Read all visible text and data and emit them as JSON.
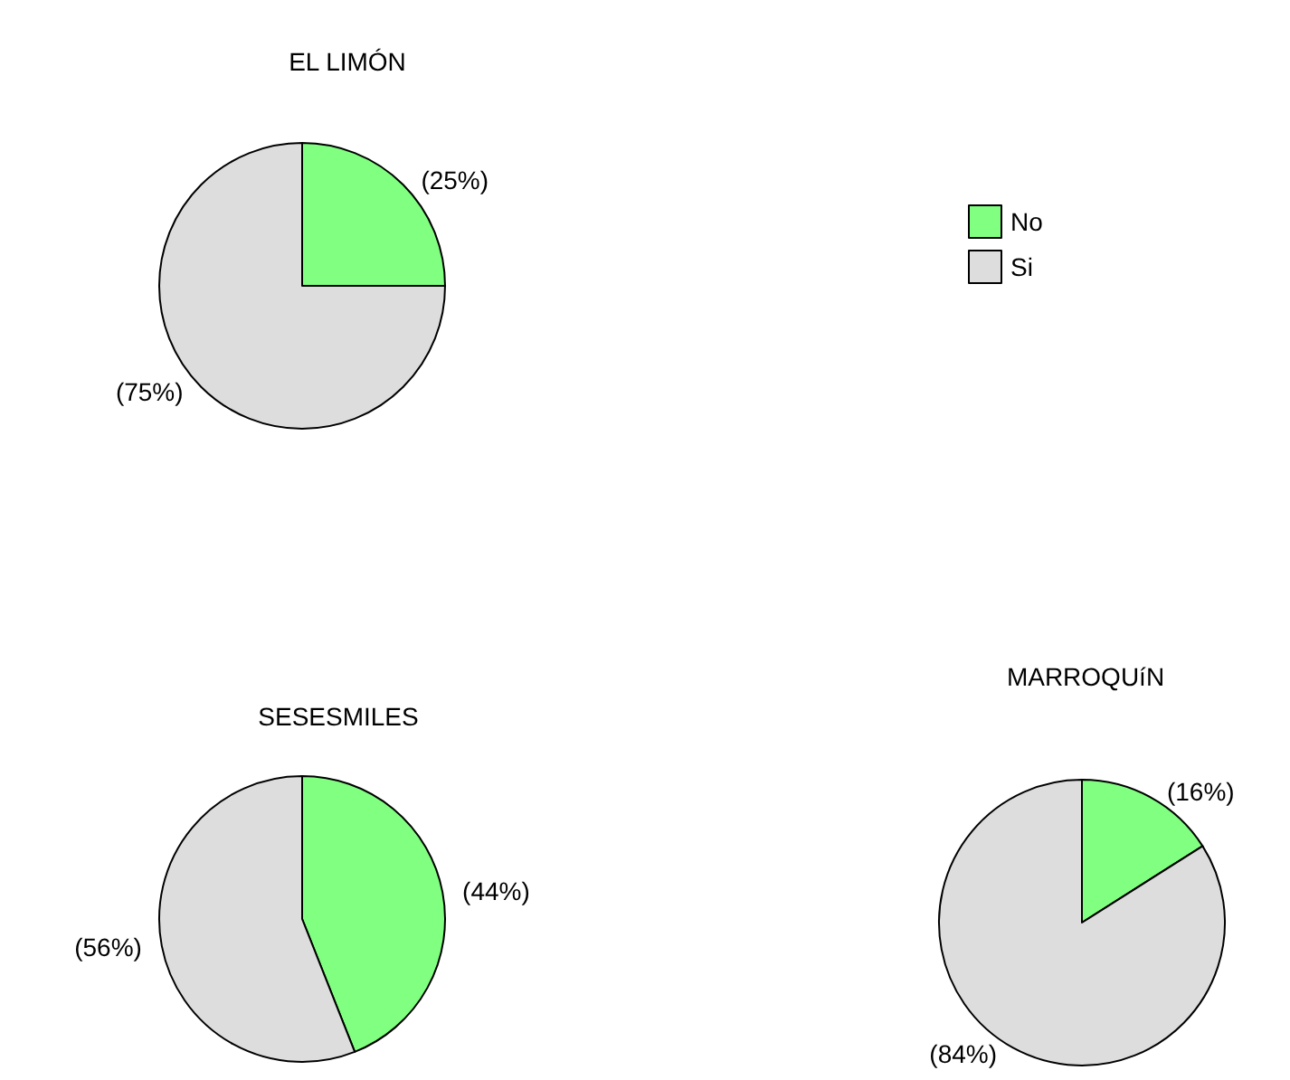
{
  "chart_data": [
    {
      "type": "pie",
      "title": "EL LIMÓN",
      "categories": [
        "No",
        "Si"
      ],
      "values": [
        25,
        75
      ],
      "colors": [
        "#80ff80",
        "#dddddd"
      ],
      "value_labels": [
        "(25%)",
        "(75%)"
      ],
      "legend": "right"
    },
    {
      "type": "pie",
      "title": "SESESMILES",
      "categories": [
        null,
        null
      ],
      "values": [
        44,
        56
      ],
      "colors": [
        "#80ff80",
        "#dddddd"
      ],
      "value_labels": [
        "(44%)",
        "(56%)"
      ]
    },
    {
      "type": "pie",
      "title": "MARROQUíN",
      "categories": [
        null,
        null
      ],
      "values": [
        16,
        84
      ],
      "colors": [
        "#80ff80",
        "#dddddd"
      ],
      "value_labels": [
        "(16%)",
        "(84%)"
      ]
    }
  ]
}
